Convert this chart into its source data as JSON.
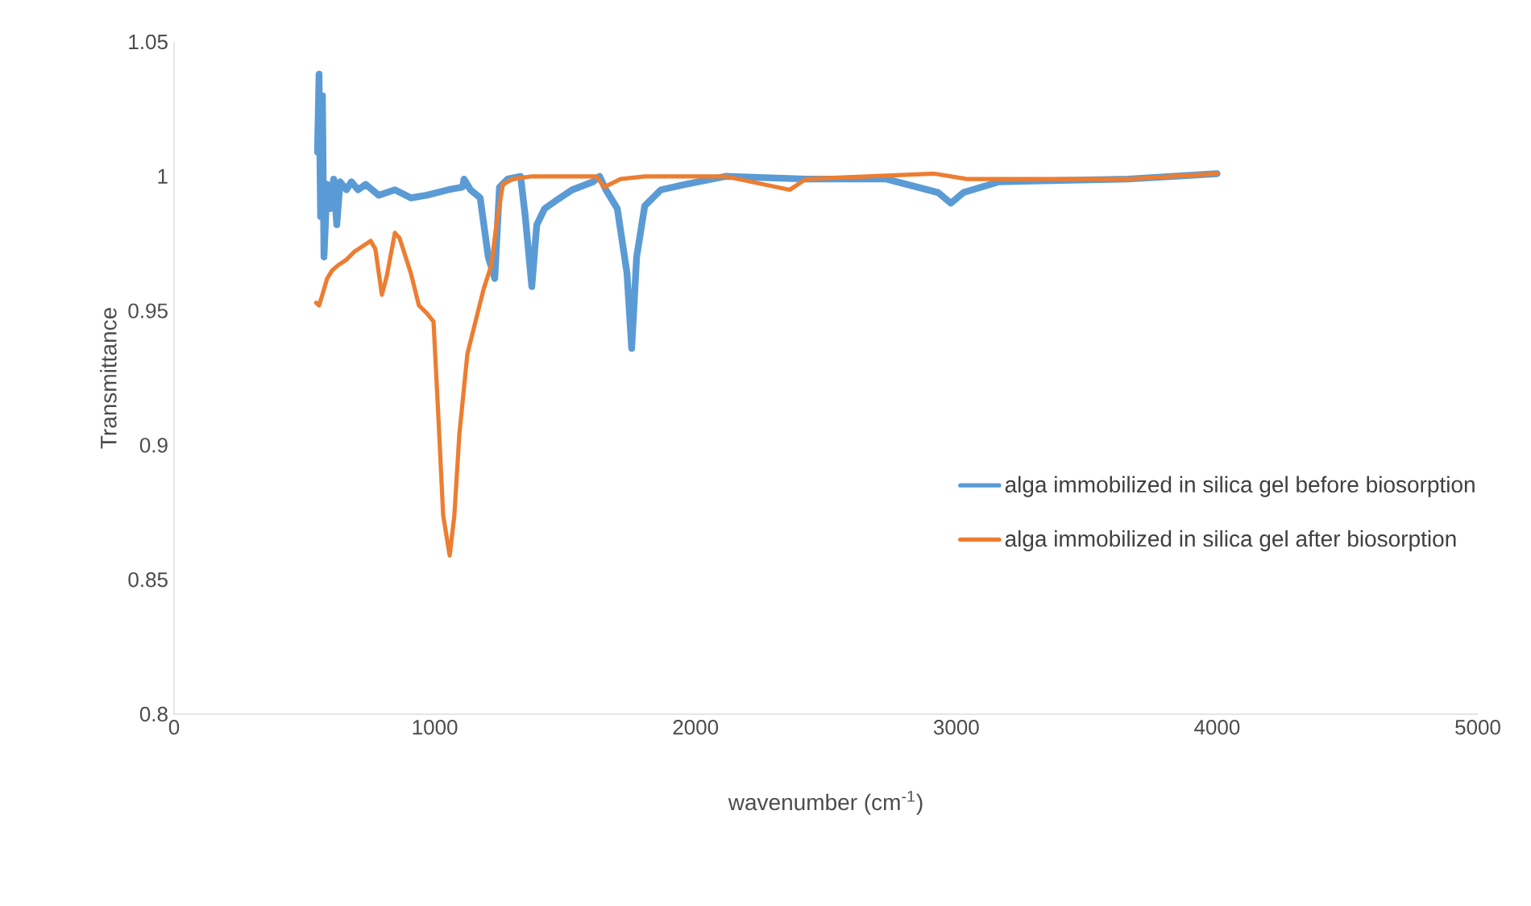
{
  "chart_data": {
    "type": "line",
    "xlabel": "wavenumber (cm$^{-1}$)",
    "ylabel": "Transmittance",
    "xlim": [
      0,
      5000
    ],
    "xticks": [
      0,
      1000,
      2000,
      3000,
      4000,
      5000
    ],
    "ylim": [
      0.8,
      1.05
    ],
    "yticks": [
      0.8,
      0.85,
      0.9,
      0.95,
      1,
      1.05
    ],
    "grid": false,
    "legend": "right",
    "marker": "none",
    "line_style": "solid",
    "series": [
      {
        "name": "alga immobilized in silica gel before biosorption",
        "color": "#5b9bd5",
        "x": [
          550,
          556,
          562,
          569,
          575,
          587,
          600,
          612,
          624,
          637,
          661,
          680,
          705,
          735,
          785,
          847,
          908,
          970,
          1051,
          1106,
          1112,
          1137,
          1174,
          1205,
          1230,
          1248,
          1279,
          1329,
          1347,
          1372,
          1391,
          1421,
          1465,
          1527,
          1607,
          1632,
          1656,
          1700,
          1737,
          1755,
          1774,
          1805,
          1867,
          1959,
          2114,
          2423,
          2732,
          2930,
          2979,
          3028,
          3164,
          3659,
          4000
        ],
        "values": [
          1.009,
          1.038,
          0.985,
          1.03,
          0.97,
          0.997,
          0.988,
          0.999,
          0.982,
          0.998,
          0.995,
          0.998,
          0.995,
          0.997,
          0.993,
          0.995,
          0.992,
          0.993,
          0.995,
          0.996,
          0.999,
          0.995,
          0.992,
          0.97,
          0.962,
          0.996,
          0.999,
          1.0,
          0.985,
          0.959,
          0.982,
          0.988,
          0.991,
          0.995,
          0.998,
          1.0,
          0.995,
          0.988,
          0.964,
          0.936,
          0.97,
          0.989,
          0.995,
          0.997,
          1.0,
          0.999,
          0.999,
          0.994,
          0.99,
          0.994,
          0.998,
          0.999,
          1.001
        ]
      },
      {
        "name": "alga immobilized in silica gel after biosorption",
        "color": "#ed7d31",
        "x": [
          545,
          556,
          569,
          587,
          606,
          630,
          661,
          692,
          723,
          754,
          772,
          797,
          816,
          847,
          865,
          908,
          939,
          970,
          995,
          1014,
          1032,
          1057,
          1075,
          1094,
          1125,
          1156,
          1187,
          1217,
          1236,
          1261,
          1298,
          1372,
          1619,
          1650,
          1712,
          1805,
          2114,
          2361,
          2423,
          2917,
          3041,
          3659,
          4000
        ],
        "values": [
          0.953,
          0.952,
          0.956,
          0.962,
          0.965,
          0.967,
          0.969,
          0.972,
          0.974,
          0.976,
          0.973,
          0.956,
          0.963,
          0.979,
          0.977,
          0.964,
          0.952,
          0.949,
          0.946,
          0.91,
          0.874,
          0.859,
          0.874,
          0.904,
          0.934,
          0.946,
          0.958,
          0.967,
          0.982,
          0.997,
          0.999,
          1.0,
          1.0,
          0.996,
          0.999,
          1.0,
          1.0,
          0.995,
          0.999,
          1.001,
          0.999,
          0.999,
          1.001
        ]
      }
    ]
  }
}
